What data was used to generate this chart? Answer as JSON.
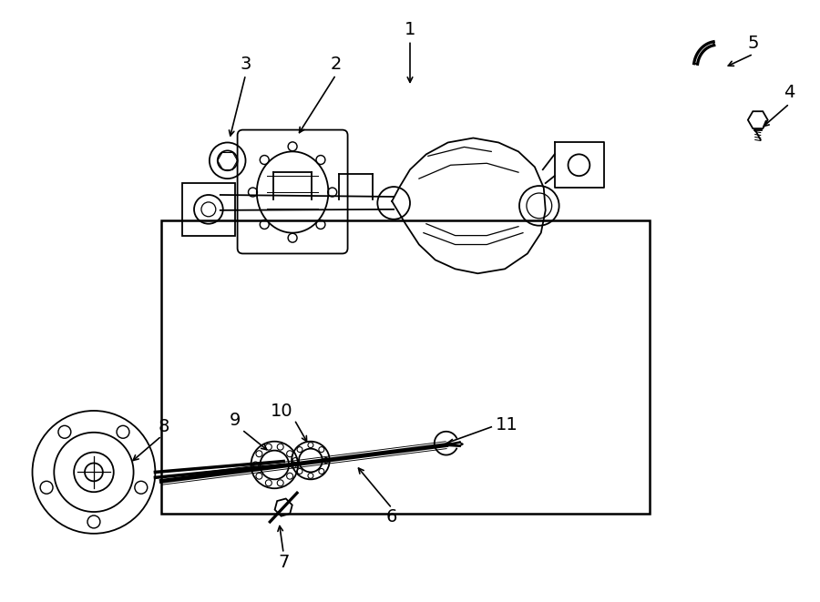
{
  "bg_color": "#ffffff",
  "line_color": "#000000",
  "label_fontsize": 14,
  "figsize": [
    9.0,
    6.61
  ],
  "dpi": 100
}
